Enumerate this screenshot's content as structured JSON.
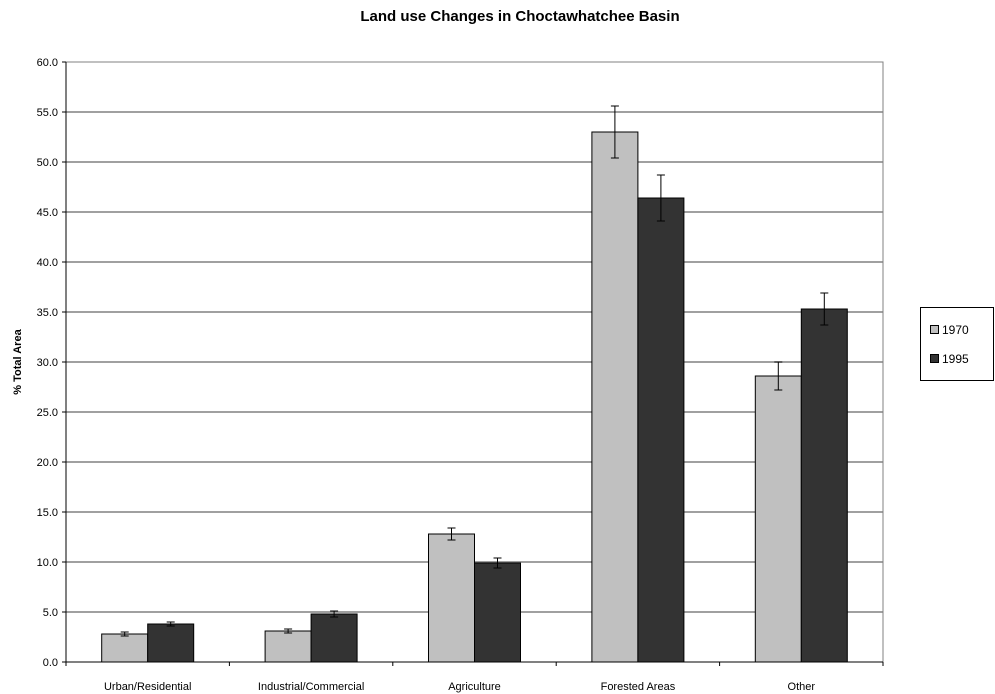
{
  "chart_data": {
    "type": "bar",
    "title": "Land use Changes in Choctawhatchee Basin",
    "xlabel": "",
    "ylabel": "% Total Area",
    "ylim": [
      0,
      60
    ],
    "yticks": [
      "0.0",
      "5.0",
      "10.0",
      "15.0",
      "20.0",
      "25.0",
      "30.0",
      "35.0",
      "40.0",
      "45.0",
      "50.0",
      "55.0",
      "60.0"
    ],
    "grid": true,
    "legend_position": "right",
    "categories": [
      "Urban/Residential",
      "Industrial/Commercial",
      "Agriculture",
      "Forested Areas",
      "Other"
    ],
    "series": [
      {
        "name": "1970",
        "color": "#c0c0c0",
        "values": [
          2.8,
          3.1,
          12.8,
          53.0,
          28.6
        ],
        "errors": [
          0.2,
          0.2,
          0.6,
          2.6,
          1.4
        ]
      },
      {
        "name": "1995",
        "color": "#333333",
        "values": [
          3.8,
          4.8,
          9.9,
          46.4,
          35.3
        ],
        "errors": [
          0.2,
          0.3,
          0.5,
          2.3,
          1.6
        ]
      }
    ]
  }
}
